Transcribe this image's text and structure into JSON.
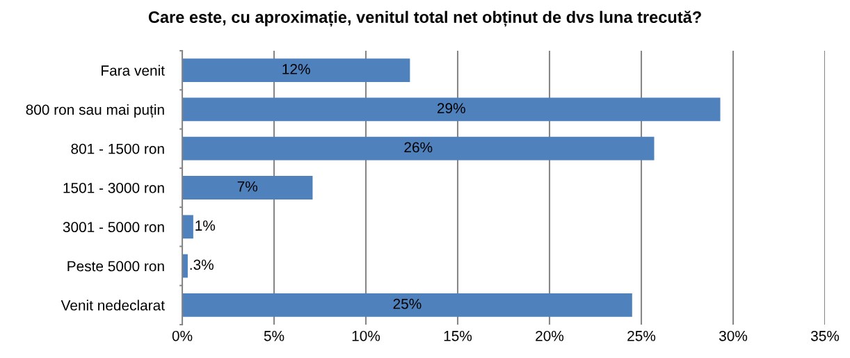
{
  "chart_data": {
    "type": "bar",
    "orientation": "horizontal",
    "title": "Care este, cu aproximație, venitul total net obținut de dvs luna trecută?",
    "categories": [
      "Fara venit",
      "800 ron sau mai puțin",
      "801 - 1500 ron",
      "1501 - 3000 ron",
      "3001 - 5000 ron",
      "Peste 5000 ron",
      "Venit nedeclarat"
    ],
    "values": [
      12.4,
      29.3,
      25.7,
      7.1,
      0.6,
      0.3,
      24.5
    ],
    "value_labels": [
      "12%",
      "29%",
      "26%",
      "7%",
      "1%",
      ".3%",
      "25%"
    ],
    "color": "#4f81bd",
    "xlim": [
      0,
      35
    ],
    "xticks": [
      {
        "value": 0,
        "label": "0%"
      },
      {
        "value": 5,
        "label": "5%"
      },
      {
        "value": 10,
        "label": "10%"
      },
      {
        "value": 15,
        "label": "15%"
      },
      {
        "value": 20,
        "label": "20%"
      },
      {
        "value": 25,
        "label": "25%"
      },
      {
        "value": 30,
        "label": "30%"
      },
      {
        "value": 35,
        "label": "35%"
      }
    ],
    "grid": "x",
    "legend": false
  }
}
